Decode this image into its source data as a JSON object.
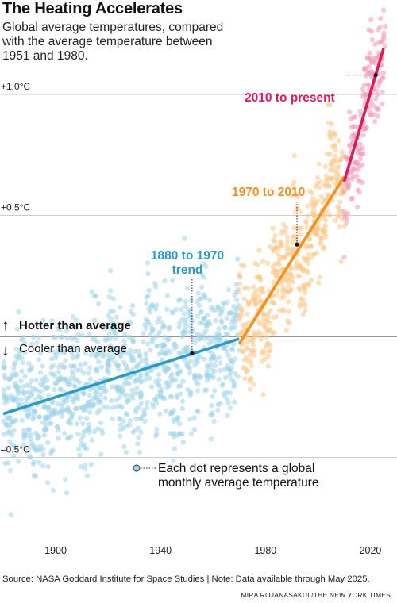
{
  "title": "The Heating Accelerates",
  "subtitle": "Global average temperatures, compared with the average temperature between 1951 and 1980.",
  "footer": {
    "source": "Source: NASA Goddard Institute for Space Studies | Note: Data available through May 2025.",
    "credit": "MIRA ROJANASAKUL/THE NEW YORK TIMES"
  },
  "colors": {
    "early": "#2a9bc4",
    "early_dots": "#9fd3e8",
    "mid": "#f5901e",
    "mid_dots": "#f9c889",
    "recent": "#e0195a",
    "recent_dots": "#f29ab6",
    "grid": "#cccccc",
    "zero": "#555555"
  },
  "chart_data": {
    "type": "scatter",
    "x_unit": "year",
    "y_unit": "°C",
    "xlim": [
      1880,
      2025
    ],
    "ylim": [
      -0.75,
      1.4
    ],
    "x_ticks": [
      1900,
      1940,
      1980,
      2020
    ],
    "x_tick_labels": [
      "1900",
      "1940",
      "1980",
      "2020"
    ],
    "y_ticks": [
      1.0,
      0.5,
      -0.5
    ],
    "y_tick_labels": [
      "+1.0°C",
      "+0.5°C",
      "–0.5°C"
    ],
    "grid": true,
    "series": [
      {
        "name": "1880 to 1970 trend",
        "color_key": "early",
        "x": [
          1880,
          1970
        ],
        "y": [
          -0.32,
          -0.01
        ]
      },
      {
        "name": "1970 to 2010",
        "color_key": "mid",
        "x": [
          1970,
          2010
        ],
        "y": [
          -0.03,
          0.66
        ]
      },
      {
        "name": "2010 to present",
        "color_key": "recent",
        "x": [
          2010,
          2025
        ],
        "y": [
          0.64,
          1.19
        ]
      }
    ],
    "dot_bands": [
      {
        "color_key": "early_dots",
        "x_range": [
          1880,
          1970
        ],
        "mean_at_start": -0.32,
        "mean_at_end": -0.01,
        "spread": 0.26
      },
      {
        "color_key": "mid_dots",
        "x_range": [
          1970,
          2010
        ],
        "mean_at_start": -0.03,
        "mean_at_end": 0.66,
        "spread": 0.2
      },
      {
        "color_key": "recent_dots",
        "x_range": [
          2010,
          2025.4
        ],
        "mean_at_start": 0.64,
        "mean_at_end": 1.19,
        "spread": 0.18
      }
    ],
    "annotations": {
      "hotter": "Hotter than average",
      "cooler": "Cooler than average",
      "up_arrow": "↑",
      "down_arrow": "↓",
      "label_1880": [
        "1880 to 1970",
        "trend"
      ],
      "label_1970": "1970 to 2010",
      "label_2010": "2010 to present",
      "marker_1880": {
        "x": 1952,
        "y": -0.07
      },
      "marker_1970": {
        "x": 1992,
        "y": 0.38
      },
      "marker_2010": {
        "x": 2022,
        "y": 1.08
      },
      "dot_legend": [
        "Each dot represents a global",
        "monthly average temperature"
      ]
    }
  }
}
